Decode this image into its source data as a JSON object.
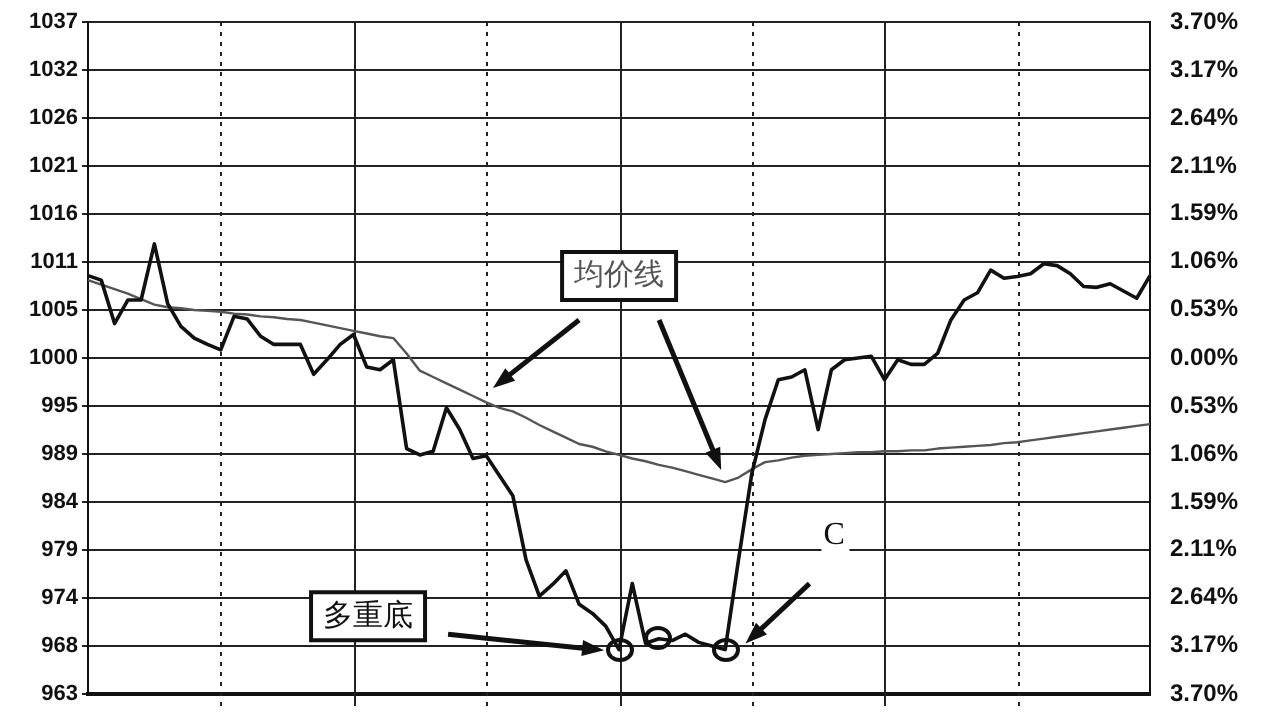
{
  "chart_data": {
    "type": "line",
    "annotations": [
      "多重底",
      "C"
    ],
    "categories": [
      null,
      null,
      null,
      null,
      null,
      null,
      null,
      null,
      null,
      null,
      null,
      null,
      null,
      null,
      null,
      null,
      null,
      null,
      null,
      null,
      null,
      null,
      null,
      null,
      null,
      null,
      null,
      null,
      null,
      null,
      null,
      null,
      null,
      null,
      null,
      null,
      null,
      null,
      null,
      null,
      null,
      null,
      null,
      null,
      null,
      null,
      null,
      null,
      null,
      null,
      null,
      null,
      null,
      null,
      null,
      null,
      null,
      null,
      null,
      null,
      null,
      null,
      null,
      null,
      null,
      null,
      null,
      null,
      null,
      null,
      null,
      null,
      null,
      null,
      null,
      null,
      null,
      null,
      null,
      null,
      null
    ],
    "ylim": [
      962.9,
      1037.1
    ],
    "yticks": [
      {
        "value": 962.9,
        "label": "963"
      },
      {
        "value": 968.2,
        "label": "968"
      },
      {
        "value": 973.5,
        "label": "974"
      },
      {
        "value": 978.8,
        "label": "979"
      },
      {
        "value": 984.1,
        "label": "984"
      },
      {
        "value": 989.4,
        "label": "989"
      },
      {
        "value": 994.7,
        "label": "995"
      },
      {
        "value": 1000,
        "label": "1000"
      },
      {
        "value": 1005.3,
        "label": "1005"
      },
      {
        "value": 1010.6,
        "label": "1011"
      },
      {
        "value": 1015.9,
        "label": "1016"
      },
      {
        "value": 1021.2,
        "label": "1021"
      },
      {
        "value": 1026.5,
        "label": "1026"
      },
      {
        "value": 1031.8,
        "label": "1032"
      },
      {
        "value": 1037.1,
        "label": "1037"
      }
    ],
    "y2lim": [
      -3.7,
      3.7
    ],
    "y2ticks": [
      {
        "value": -3.7,
        "label": "3.70%"
      },
      {
        "value": -3.17,
        "label": "3.17%"
      },
      {
        "value": -2.64,
        "label": "2.64%"
      },
      {
        "value": -2.11,
        "label": "2.11%"
      },
      {
        "value": -1.59,
        "label": "1.59%"
      },
      {
        "value": -1.06,
        "label": "1.06%"
      },
      {
        "value": -0.53,
        "label": "0.53%"
      },
      {
        "value": 0,
        "label": "0.00%"
      },
      {
        "value": 0.53,
        "label": "0.53%"
      },
      {
        "value": 1.06,
        "label": "1.06%"
      },
      {
        "value": 1.59,
        "label": "1.59%"
      },
      {
        "value": 2.11,
        "label": "2.11%"
      },
      {
        "value": 2.64,
        "label": "2.64%"
      },
      {
        "value": 3.17,
        "label": "3.17%"
      },
      {
        "value": 3.7,
        "label": "3.70%"
      }
    ],
    "grid": true,
    "legend": false,
    "line_style": "solid",
    "marker": "none",
    "series": [
      {
        "color": "#111111",
        "values": [
          1009.1,
          1008.6,
          1003.8,
          1006.4,
          1006.4,
          1012.6,
          1006,
          1003.5,
          1002.2,
          1001.5,
          1000.9,
          1004.6,
          1004.3,
          1002.4,
          1001.5,
          1001.5,
          1001.5,
          998.2,
          999.8,
          1001.5,
          1002.6,
          999,
          998.7,
          999.8,
          990,
          989.3,
          989.7,
          994.5,
          992.1,
          988.9,
          989.2,
          987,
          984.8,
          977.7,
          973.7,
          975,
          976.5,
          972.8,
          971.8,
          970.4,
          967.8,
          975.1,
          968.5,
          969,
          968.8,
          969.5,
          968.6,
          968.2,
          967.8,
          977.7,
          987.2,
          993.2,
          997.6,
          997.9,
          998.7,
          992.1,
          998.7,
          999.8,
          1000,
          1000.2,
          997.6,
          999.8,
          999.3,
          999.3,
          1000.5,
          1004.2,
          1006.4,
          1007.2,
          1009.7,
          1008.8,
          1009,
          1009.3,
          1010.4,
          1010.2,
          1009.3,
          1007.9,
          1007.8,
          1008.2,
          1007.4,
          1006.6,
          1009.1
        ]
      },
      {
        "name": "均价线",
        "color": "#555555",
        "values": [
          1008.6,
          1008.1,
          1007.6,
          1007.1,
          1006.5,
          1005.9,
          1005.6,
          1005.5,
          1005.3,
          1005.2,
          1005.1,
          1004.9,
          1004.8,
          1004.6,
          1004.5,
          1004.3,
          1004.2,
          1003.9,
          1003.6,
          1003.3,
          1003.0,
          1002.7,
          1002.4,
          1002.2,
          1000.5,
          998.6,
          997.9,
          997.2,
          996.5,
          995.8,
          995.1,
          994.5,
          994.1,
          993.4,
          992.6,
          991.9,
          991.2,
          990.5,
          990.2,
          989.7,
          989.3,
          988.9,
          988.6,
          988.2,
          987.9,
          987.5,
          987.1,
          986.7,
          986.3,
          986.8,
          987.7,
          988.5,
          988.7,
          989.0,
          989.2,
          989.3,
          989.4,
          989.5,
          989.6,
          989.6,
          989.7,
          989.7,
          989.8,
          989.8,
          990.0,
          990.1,
          990.2,
          990.3,
          990.4,
          990.6,
          990.7,
          990.9,
          991.1,
          991.3,
          991.5,
          991.7,
          991.9,
          992.1,
          992.3,
          992.5,
          992.7
        ]
      }
    ]
  }
}
